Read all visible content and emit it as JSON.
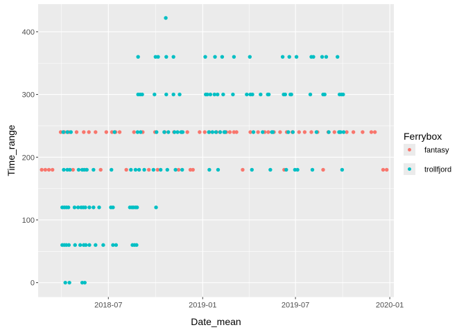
{
  "chart_data": {
    "type": "scatter",
    "xlabel": "Date_mean",
    "ylabel": "Time_range",
    "xlim": [
      "2018-02-14",
      "2020-01-09"
    ],
    "ylim": [
      -23,
      444
    ],
    "x_ticks": [
      "2018-07-01",
      "2019-01-01",
      "2019-07-01",
      "2020-01-01"
    ],
    "x_tick_labels": [
      "2018-07",
      "2019-01",
      "2019-07",
      "2020-01"
    ],
    "y_ticks": [
      0,
      100,
      200,
      300,
      400
    ],
    "y_tick_labels": [
      "0",
      "100",
      "200",
      "300",
      "400"
    ],
    "grid": true,
    "legend": {
      "title": "Ferrybox",
      "position": "right"
    },
    "panel_color": "#ebebeb",
    "grid_color": "#ffffff",
    "series": [
      {
        "name": "fantasy",
        "color": "#F8766D",
        "points": [
          {
            "x": "2018-02-21",
            "y": 180
          },
          {
            "x": "2018-02-28",
            "y": 180
          },
          {
            "x": "2018-03-07",
            "y": 180
          },
          {
            "x": "2018-03-14",
            "y": 180
          },
          {
            "x": "2018-03-30",
            "y": 240
          },
          {
            "x": "2018-04-06",
            "y": 240
          },
          {
            "x": "2018-04-15",
            "y": 240
          },
          {
            "x": "2018-04-23",
            "y": 180
          },
          {
            "x": "2018-04-30",
            "y": 240
          },
          {
            "x": "2018-05-14",
            "y": 240
          },
          {
            "x": "2018-05-19",
            "y": 180
          },
          {
            "x": "2018-05-24",
            "y": 240
          },
          {
            "x": "2018-06-06",
            "y": 240
          },
          {
            "x": "2018-06-16",
            "y": 180
          },
          {
            "x": "2018-06-27",
            "y": 240
          },
          {
            "x": "2018-07-08",
            "y": 240
          },
          {
            "x": "2018-07-15",
            "y": 240
          },
          {
            "x": "2018-07-23",
            "y": 240
          },
          {
            "x": "2018-08-05",
            "y": 180
          },
          {
            "x": "2018-08-20",
            "y": 240
          },
          {
            "x": "2018-09-06",
            "y": 240
          },
          {
            "x": "2018-09-18",
            "y": 180
          },
          {
            "x": "2018-09-30",
            "y": 240
          },
          {
            "x": "2018-10-05",
            "y": 180
          },
          {
            "x": "2018-10-19",
            "y": 240
          },
          {
            "x": "2018-11-06",
            "y": 240
          },
          {
            "x": "2018-11-15",
            "y": 180
          },
          {
            "x": "2018-11-21",
            "y": 240
          },
          {
            "x": "2018-12-02",
            "y": 240
          },
          {
            "x": "2018-12-08",
            "y": 180
          },
          {
            "x": "2018-12-13",
            "y": 180
          },
          {
            "x": "2018-12-26",
            "y": 240
          },
          {
            "x": "2019-01-05",
            "y": 240
          },
          {
            "x": "2019-01-14",
            "y": 240
          },
          {
            "x": "2019-01-28",
            "y": 240
          },
          {
            "x": "2019-02-04",
            "y": 240
          },
          {
            "x": "2019-02-16",
            "y": 240
          },
          {
            "x": "2019-02-23",
            "y": 240
          },
          {
            "x": "2019-03-03",
            "y": 240
          },
          {
            "x": "2019-03-08",
            "y": 240
          },
          {
            "x": "2019-03-20",
            "y": 180
          },
          {
            "x": "2019-04-04",
            "y": 240
          },
          {
            "x": "2019-04-19",
            "y": 240
          },
          {
            "x": "2019-05-02",
            "y": 240
          },
          {
            "x": "2019-05-09",
            "y": 240
          },
          {
            "x": "2019-05-20",
            "y": 240
          },
          {
            "x": "2019-06-01",
            "y": 240
          },
          {
            "x": "2019-06-09",
            "y": 180
          },
          {
            "x": "2019-06-14",
            "y": 240
          },
          {
            "x": "2019-06-25",
            "y": 240
          },
          {
            "x": "2019-07-08",
            "y": 240
          },
          {
            "x": "2019-07-19",
            "y": 240
          },
          {
            "x": "2019-08-01",
            "y": 240
          },
          {
            "x": "2019-08-13",
            "y": 240
          },
          {
            "x": "2019-08-24",
            "y": 180
          },
          {
            "x": "2019-09-03",
            "y": 240
          },
          {
            "x": "2019-09-15",
            "y": 240
          },
          {
            "x": "2019-09-25",
            "y": 240
          },
          {
            "x": "2019-10-09",
            "y": 240
          },
          {
            "x": "2019-10-22",
            "y": 240
          },
          {
            "x": "2019-11-09",
            "y": 240
          },
          {
            "x": "2019-11-26",
            "y": 240
          },
          {
            "x": "2019-12-03",
            "y": 240
          },
          {
            "x": "2019-12-19",
            "y": 180
          },
          {
            "x": "2019-12-26",
            "y": 180
          }
        ]
      },
      {
        "name": "trollfjord",
        "color": "#00BFC4",
        "points": [
          {
            "x": "2018-04-02",
            "y": 120
          },
          {
            "x": "2018-04-02",
            "y": 60
          },
          {
            "x": "2018-04-04",
            "y": 240
          },
          {
            "x": "2018-04-05",
            "y": 180
          },
          {
            "x": "2018-04-06",
            "y": 120
          },
          {
            "x": "2018-04-06",
            "y": 60
          },
          {
            "x": "2018-04-08",
            "y": 0
          },
          {
            "x": "2018-04-10",
            "y": 120
          },
          {
            "x": "2018-04-10",
            "y": 60
          },
          {
            "x": "2018-04-12",
            "y": 240
          },
          {
            "x": "2018-04-12",
            "y": 180
          },
          {
            "x": "2018-04-14",
            "y": 120
          },
          {
            "x": "2018-04-15",
            "y": 60
          },
          {
            "x": "2018-04-16",
            "y": 0
          },
          {
            "x": "2018-04-17",
            "y": 180
          },
          {
            "x": "2018-04-19",
            "y": 240
          },
          {
            "x": "2018-04-26",
            "y": 120
          },
          {
            "x": "2018-04-27",
            "y": 60
          },
          {
            "x": "2018-05-03",
            "y": 120
          },
          {
            "x": "2018-05-04",
            "y": 180
          },
          {
            "x": "2018-05-07",
            "y": 60
          },
          {
            "x": "2018-05-09",
            "y": 120
          },
          {
            "x": "2018-05-11",
            "y": 180
          },
          {
            "x": "2018-05-11",
            "y": 0
          },
          {
            "x": "2018-05-13",
            "y": 120
          },
          {
            "x": "2018-05-14",
            "y": 60
          },
          {
            "x": "2018-05-15",
            "y": 180
          },
          {
            "x": "2018-05-16",
            "y": 0
          },
          {
            "x": "2018-05-17",
            "y": 120
          },
          {
            "x": "2018-05-18",
            "y": 60
          },
          {
            "x": "2018-05-20",
            "y": 180
          },
          {
            "x": "2018-05-25",
            "y": 120
          },
          {
            "x": "2018-05-25",
            "y": 60
          },
          {
            "x": "2018-06-02",
            "y": 120
          },
          {
            "x": "2018-06-02",
            "y": 180
          },
          {
            "x": "2018-06-06",
            "y": 60
          },
          {
            "x": "2018-06-13",
            "y": 120
          },
          {
            "x": "2018-06-21",
            "y": 60
          },
          {
            "x": "2018-07-06",
            "y": 120
          },
          {
            "x": "2018-07-07",
            "y": 180
          },
          {
            "x": "2018-07-10",
            "y": 120
          },
          {
            "x": "2018-07-10",
            "y": 60
          },
          {
            "x": "2018-07-13",
            "y": 240
          },
          {
            "x": "2018-07-16",
            "y": 60
          },
          {
            "x": "2018-08-12",
            "y": 120
          },
          {
            "x": "2018-08-14",
            "y": 180
          },
          {
            "x": "2018-08-16",
            "y": 120
          },
          {
            "x": "2018-08-17",
            "y": 60
          },
          {
            "x": "2018-08-19",
            "y": 120
          },
          {
            "x": "2018-08-21",
            "y": 60
          },
          {
            "x": "2018-08-23",
            "y": 120
          },
          {
            "x": "2018-08-23",
            "y": 180
          },
          {
            "x": "2018-08-25",
            "y": 60
          },
          {
            "x": "2018-08-26",
            "y": 120
          },
          {
            "x": "2018-08-27",
            "y": 240
          },
          {
            "x": "2018-08-28",
            "y": 300
          },
          {
            "x": "2018-08-28",
            "y": 360
          },
          {
            "x": "2018-08-30",
            "y": 180
          },
          {
            "x": "2018-09-01",
            "y": 300
          },
          {
            "x": "2018-09-02",
            "y": 240
          },
          {
            "x": "2018-09-05",
            "y": 300
          },
          {
            "x": "2018-09-09",
            "y": 180
          },
          {
            "x": "2018-09-27",
            "y": 180
          },
          {
            "x": "2018-09-29",
            "y": 300
          },
          {
            "x": "2018-10-01",
            "y": 360
          },
          {
            "x": "2018-10-02",
            "y": 120
          },
          {
            "x": "2018-10-03",
            "y": 240
          },
          {
            "x": "2018-10-06",
            "y": 360
          },
          {
            "x": "2018-10-11",
            "y": 180
          },
          {
            "x": "2018-10-18",
            "y": 240
          },
          {
            "x": "2018-10-21",
            "y": 422
          },
          {
            "x": "2018-10-22",
            "y": 360
          },
          {
            "x": "2018-10-22",
            "y": 300
          },
          {
            "x": "2018-10-24",
            "y": 180
          },
          {
            "x": "2018-10-26",
            "y": 240
          },
          {
            "x": "2018-11-05",
            "y": 300
          },
          {
            "x": "2018-11-05",
            "y": 360
          },
          {
            "x": "2018-11-07",
            "y": 240
          },
          {
            "x": "2018-11-09",
            "y": 180
          },
          {
            "x": "2018-11-13",
            "y": 240
          },
          {
            "x": "2018-11-17",
            "y": 300
          },
          {
            "x": "2018-11-20",
            "y": 240
          },
          {
            "x": "2018-11-22",
            "y": 180
          },
          {
            "x": "2018-11-23",
            "y": 240
          },
          {
            "x": "2019-01-06",
            "y": 360
          },
          {
            "x": "2019-01-07",
            "y": 300
          },
          {
            "x": "2019-01-10",
            "y": 300
          },
          {
            "x": "2019-01-13",
            "y": 240
          },
          {
            "x": "2019-01-14",
            "y": 180
          },
          {
            "x": "2019-01-16",
            "y": 300
          },
          {
            "x": "2019-01-20",
            "y": 240
          },
          {
            "x": "2019-01-24",
            "y": 300
          },
          {
            "x": "2019-01-25",
            "y": 360
          },
          {
            "x": "2019-01-27",
            "y": 240
          },
          {
            "x": "2019-01-30",
            "y": 300
          },
          {
            "x": "2019-01-31",
            "y": 180
          },
          {
            "x": "2019-02-04",
            "y": 240
          },
          {
            "x": "2019-02-08",
            "y": 360
          },
          {
            "x": "2019-02-10",
            "y": 300
          },
          {
            "x": "2019-02-12",
            "y": 240
          },
          {
            "x": "2019-02-14",
            "y": 240
          },
          {
            "x": "2019-03-01",
            "y": 300
          },
          {
            "x": "2019-03-03",
            "y": 360
          },
          {
            "x": "2019-03-28",
            "y": 300
          },
          {
            "x": "2019-04-03",
            "y": 360
          },
          {
            "x": "2019-04-04",
            "y": 300
          },
          {
            "x": "2019-04-07",
            "y": 180
          },
          {
            "x": "2019-04-08",
            "y": 300
          },
          {
            "x": "2019-04-10",
            "y": 240
          },
          {
            "x": "2019-04-24",
            "y": 300
          },
          {
            "x": "2019-04-28",
            "y": 240
          },
          {
            "x": "2019-05-08",
            "y": 300
          },
          {
            "x": "2019-05-10",
            "y": 300
          },
          {
            "x": "2019-05-13",
            "y": 180
          },
          {
            "x": "2019-05-16",
            "y": 240
          },
          {
            "x": "2019-05-18",
            "y": 240
          },
          {
            "x": "2019-06-06",
            "y": 360
          },
          {
            "x": "2019-06-08",
            "y": 300
          },
          {
            "x": "2019-06-11",
            "y": 300
          },
          {
            "x": "2019-06-13",
            "y": 180
          },
          {
            "x": "2019-06-17",
            "y": 240
          },
          {
            "x": "2019-06-19",
            "y": 360
          },
          {
            "x": "2019-06-21",
            "y": 300
          },
          {
            "x": "2019-06-23",
            "y": 300
          },
          {
            "x": "2019-06-26",
            "y": 240
          },
          {
            "x": "2019-06-30",
            "y": 180
          },
          {
            "x": "2019-07-03",
            "y": 360
          },
          {
            "x": "2019-07-05",
            "y": 180
          },
          {
            "x": "2019-07-30",
            "y": 300
          },
          {
            "x": "2019-08-01",
            "y": 360
          },
          {
            "x": "2019-08-03",
            "y": 180
          },
          {
            "x": "2019-08-05",
            "y": 360
          },
          {
            "x": "2019-08-11",
            "y": 240
          },
          {
            "x": "2019-08-22",
            "y": 360
          },
          {
            "x": "2019-08-24",
            "y": 300
          },
          {
            "x": "2019-08-27",
            "y": 300
          },
          {
            "x": "2019-08-30",
            "y": 360
          },
          {
            "x": "2019-09-04",
            "y": 240
          },
          {
            "x": "2019-09-21",
            "y": 360
          },
          {
            "x": "2019-09-24",
            "y": 240
          },
          {
            "x": "2019-09-25",
            "y": 300
          },
          {
            "x": "2019-09-27",
            "y": 240
          },
          {
            "x": "2019-09-29",
            "y": 300
          },
          {
            "x": "2019-09-30",
            "y": 180
          },
          {
            "x": "2019-10-02",
            "y": 300
          },
          {
            "x": "2019-10-03",
            "y": 240
          }
        ]
      }
    ]
  }
}
